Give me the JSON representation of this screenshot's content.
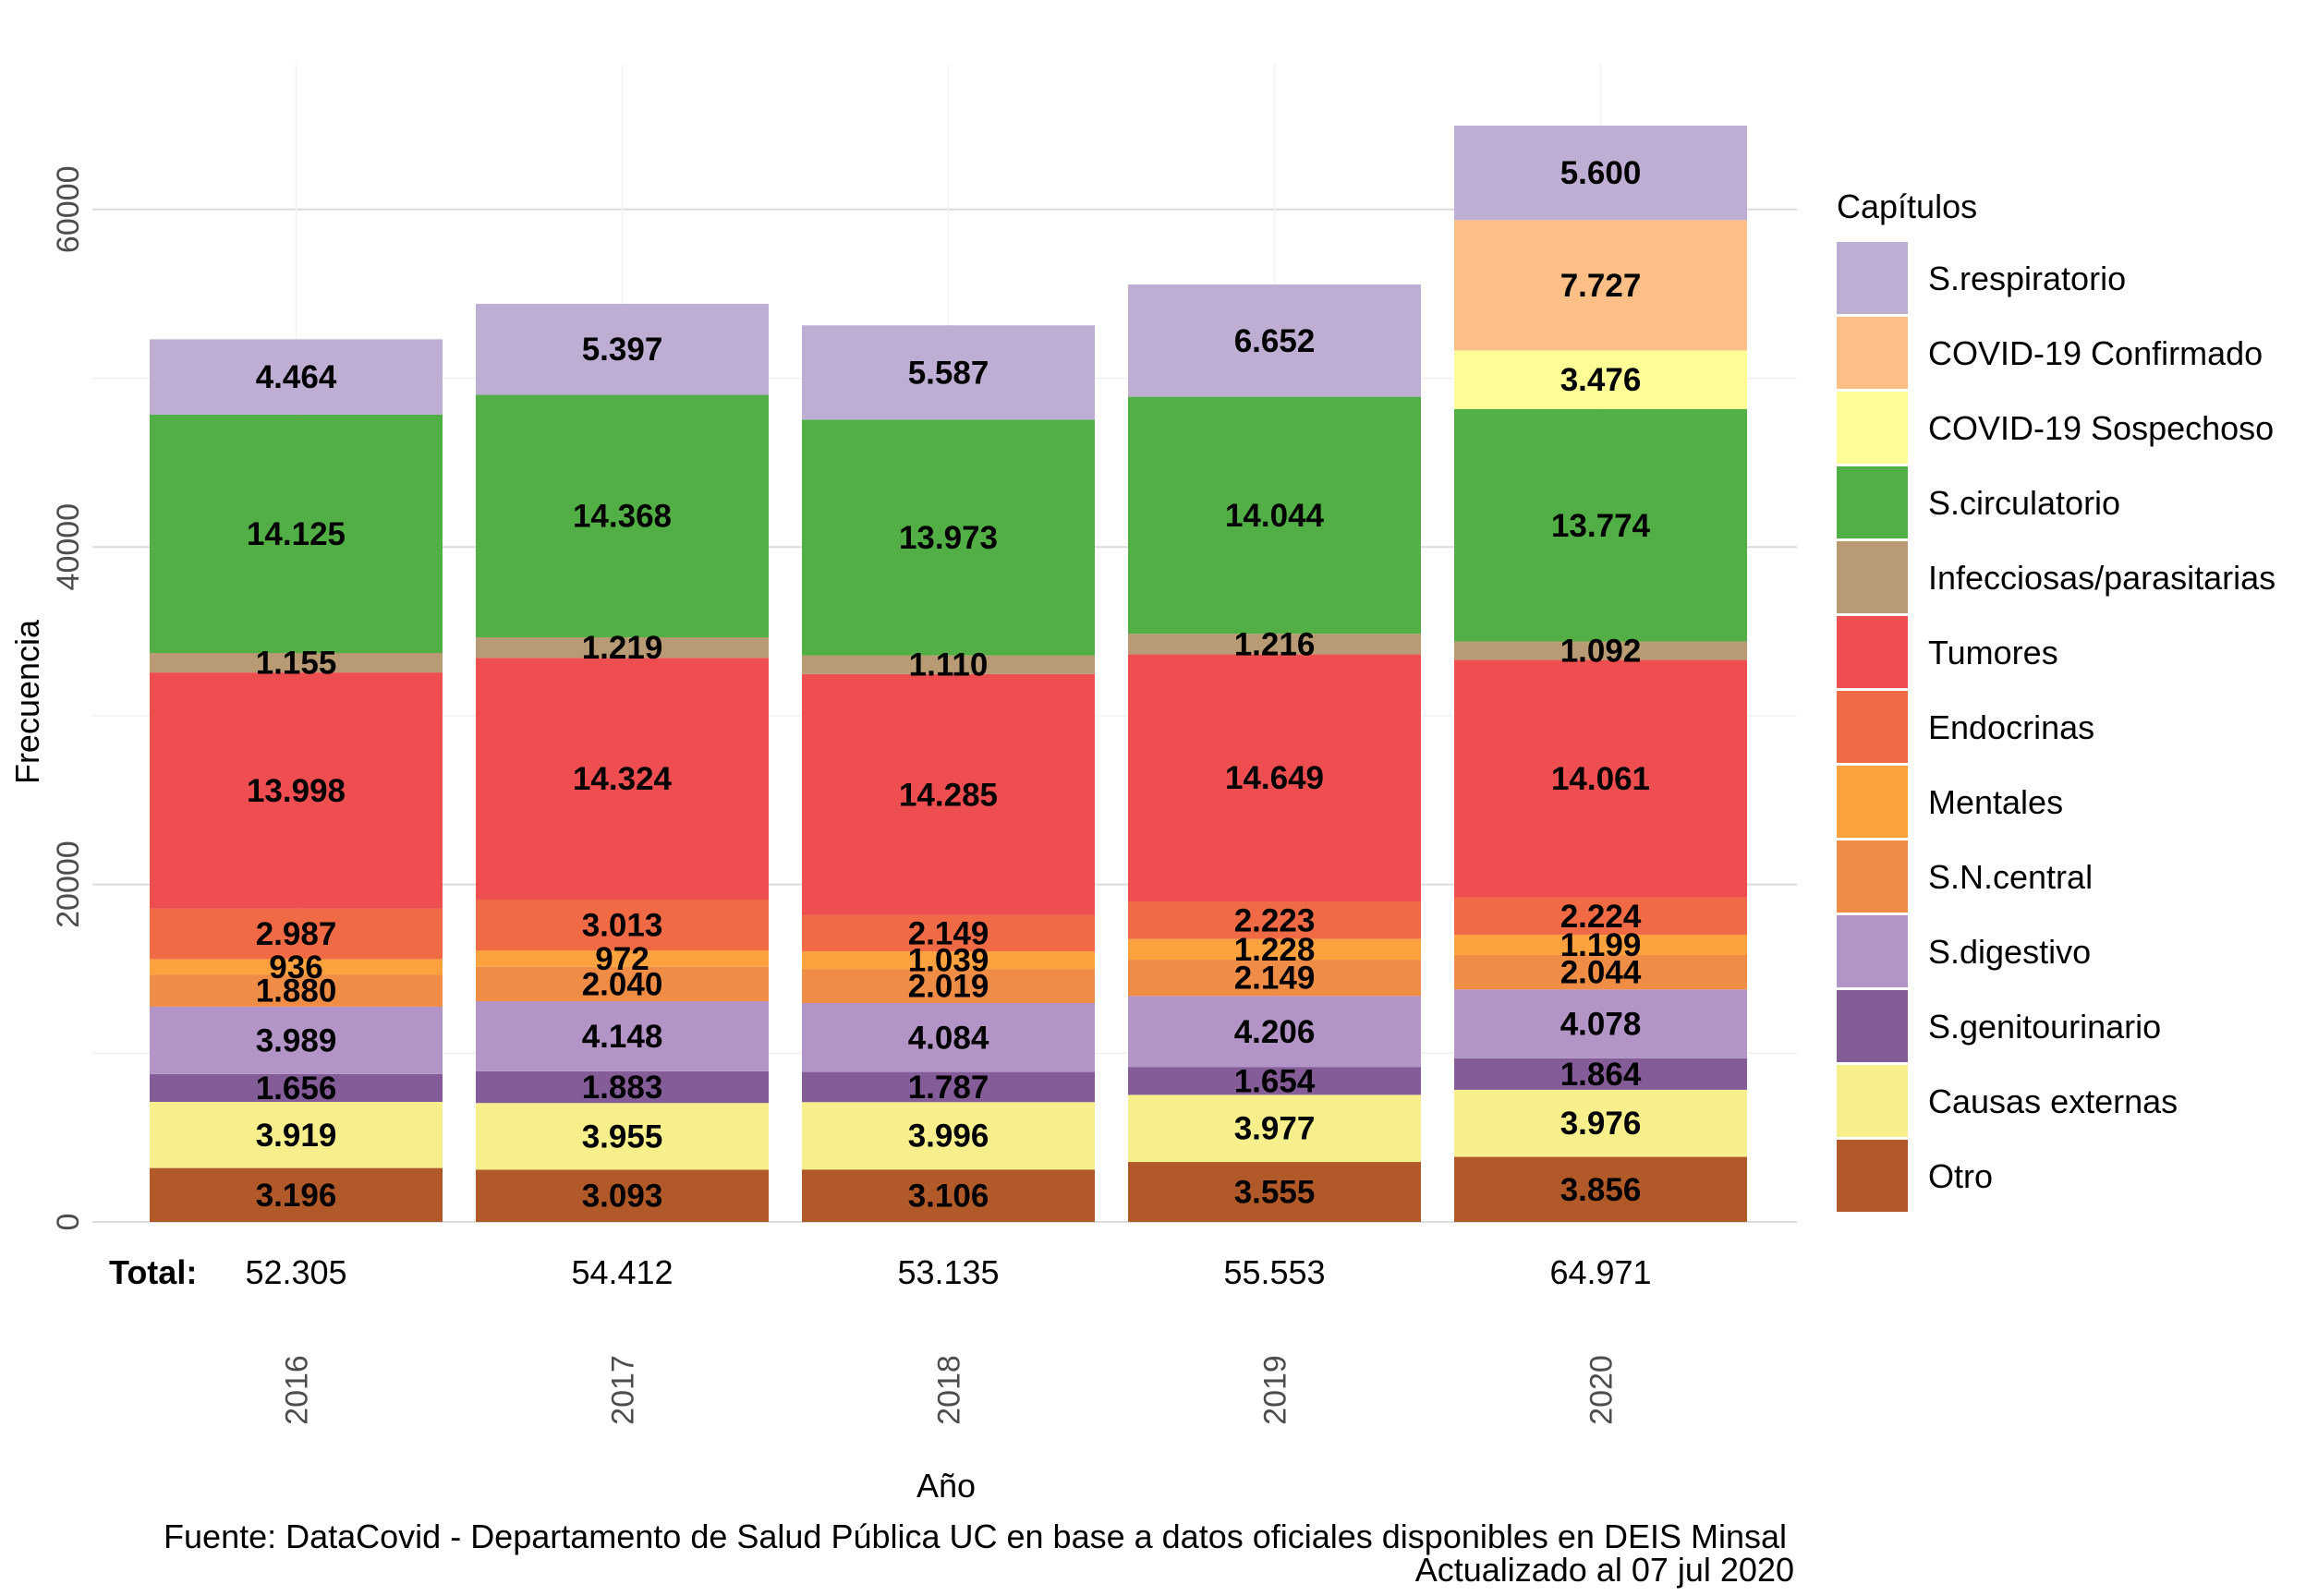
{
  "chart_data": {
    "type": "bar",
    "stacked": true,
    "categories": [
      "2016",
      "2017",
      "2018",
      "2019",
      "2020"
    ],
    "xlabel": "Año",
    "ylabel": "Frecuencia",
    "ylim": [
      0,
      65000
    ],
    "yticks": [
      0,
      20000,
      40000,
      60000
    ],
    "ytick_labels": [
      "0",
      "20000",
      "40000",
      "60000"
    ],
    "grid": true,
    "legend_title": "Capítulos",
    "legend_position": "right",
    "totals_label": "Total:",
    "totals": [
      52305,
      54412,
      53135,
      55553,
      64971
    ],
    "totals_text": [
      "52.305",
      "54.412",
      "53.135",
      "55.553",
      "64.971"
    ],
    "series": [
      {
        "name": "Otro",
        "color": "#b15928",
        "values": [
          3196,
          3093,
          3106,
          3555,
          3856
        ],
        "labels": [
          "3.196",
          "3.093",
          "3.106",
          "3.555",
          "3.856"
        ]
      },
      {
        "name": "Causas externas",
        "color": "#f6ef8c",
        "values": [
          3919,
          3955,
          3996,
          3977,
          3976
        ],
        "labels": [
          "3.919",
          "3.955",
          "3.996",
          "3.977",
          "3.976"
        ]
      },
      {
        "name": "S.genitourinario",
        "color": "#845c98",
        "values": [
          1656,
          1883,
          1787,
          1654,
          1864
        ],
        "labels": [
          "1.656",
          "1.883",
          "1.787",
          "1.654",
          "1.864"
        ]
      },
      {
        "name": "S.digestivo",
        "color": "#b294c7",
        "values": [
          3989,
          4148,
          4084,
          4206,
          4078
        ],
        "labels": [
          "3.989",
          "4.148",
          "4.084",
          "4.206",
          "4.078"
        ]
      },
      {
        "name": "S.N.central",
        "color": "#ef8d47",
        "values": [
          1880,
          2040,
          2019,
          2149,
          2044
        ],
        "labels": [
          "1.880",
          "2.040",
          "2.019",
          "2.149",
          "2.044"
        ]
      },
      {
        "name": "Mentales",
        "color": "#fda23e",
        "values": [
          936,
          972,
          1039,
          1228,
          1199
        ],
        "labels": [
          "936",
          "972",
          "1.039",
          "1.228",
          "1.199"
        ]
      },
      {
        "name": "Endocrinas",
        "color": "#f06a46",
        "values": [
          2987,
          3013,
          2149,
          2223,
          2224
        ],
        "labels": [
          "2.987",
          "3.013",
          "2.149",
          "2.223",
          "2.224"
        ]
      },
      {
        "name": "Tumores",
        "color": "#ee4e50",
        "values": [
          13998,
          14324,
          14285,
          14649,
          14061
        ],
        "labels": [
          "13.998",
          "14.324",
          "14.285",
          "14.649",
          "14.061"
        ]
      },
      {
        "name": "Infecciosas/parasitarias",
        "color": "#b89b74",
        "values": [
          1155,
          1219,
          1110,
          1216,
          1092
        ],
        "labels": [
          "1.155",
          "1.219",
          "1.110",
          "1.216",
          "1.092"
        ]
      },
      {
        "name": "S.circulatorio",
        "color": "#52af45",
        "values": [
          14125,
          14368,
          13973,
          14044,
          13774
        ],
        "labels": [
          "14.125",
          "14.368",
          "13.973",
          "14.044",
          "13.774"
        ]
      },
      {
        "name": "COVID-19 Sospechoso",
        "color": "#fdfd95",
        "values": [
          0,
          0,
          0,
          0,
          3476
        ],
        "labels": [
          "",
          "",
          "",
          "",
          "3.476"
        ]
      },
      {
        "name": "COVID-19 Confirmado",
        "color": "#fdbf85",
        "values": [
          0,
          0,
          0,
          0,
          7727
        ],
        "labels": [
          "",
          "",
          "",
          "",
          "7.727"
        ]
      },
      {
        "name": "S.respiratorio",
        "color": "#beaed4",
        "values": [
          4464,
          5397,
          5587,
          6652,
          5600
        ],
        "labels": [
          "4.464",
          "5.397",
          "5.587",
          "6.652",
          "5.600"
        ]
      }
    ],
    "legend_order": [
      "S.respiratorio",
      "COVID-19 Confirmado",
      "COVID-19 Sospechoso",
      "S.circulatorio",
      "Infecciosas/parasitarias",
      "Tumores",
      "Endocrinas",
      "Mentales",
      "S.N.central",
      "S.digestivo",
      "S.genitourinario",
      "Causas externas",
      "Otro"
    ]
  },
  "caption": {
    "source": "Fuente: DataCovid - Departamento de Salud Pública UC en base a datos oficiales disponibles en DEIS Minsal",
    "updated": "Actualizado al 07 jul 2020"
  }
}
